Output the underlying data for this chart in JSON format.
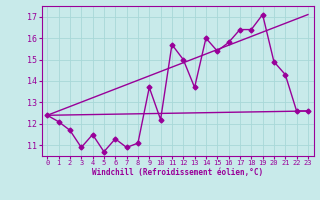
{
  "xlabel": "Windchill (Refroidissement éolien,°C)",
  "ylabel": "",
  "bg_color": "#c8eaea",
  "line_color": "#990099",
  "grid_color": "#a8d8d8",
  "xlim": [
    -0.5,
    23.5
  ],
  "ylim": [
    10.5,
    17.5
  ],
  "yticks": [
    11,
    12,
    13,
    14,
    15,
    16,
    17
  ],
  "xticks": [
    0,
    1,
    2,
    3,
    4,
    5,
    6,
    7,
    8,
    9,
    10,
    11,
    12,
    13,
    14,
    15,
    16,
    17,
    18,
    19,
    20,
    21,
    22,
    23
  ],
  "line1_x": [
    0,
    1,
    2,
    3,
    4,
    5,
    6,
    7,
    8,
    9,
    10,
    11,
    12,
    13,
    14,
    15,
    16,
    17,
    18,
    19,
    20,
    21,
    22,
    23
  ],
  "line1_y": [
    12.4,
    12.1,
    11.7,
    10.9,
    11.5,
    10.7,
    11.3,
    10.9,
    11.1,
    13.7,
    12.2,
    15.7,
    15.0,
    13.7,
    16.0,
    15.4,
    15.8,
    16.4,
    16.4,
    17.1,
    14.9,
    14.3,
    12.6,
    12.6
  ],
  "line2_x": [
    0,
    23
  ],
  "line2_y": [
    12.4,
    12.6
  ],
  "line3_x": [
    0,
    23
  ],
  "line3_y": [
    12.4,
    17.1
  ],
  "marker": "D",
  "marker_size": 2.5,
  "line_width": 1.0
}
